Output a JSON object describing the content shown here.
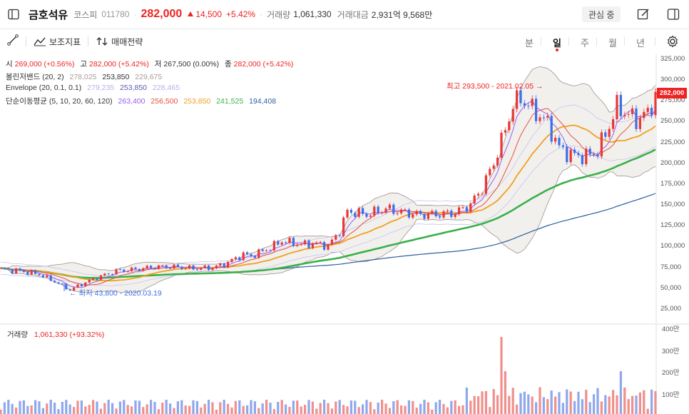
{
  "header": {
    "name": "금호석유",
    "market": "코스피",
    "code": "011780",
    "price": "282,000",
    "change": "14,500",
    "change_pct": "+5.42%",
    "volume_label": "거래량",
    "volume": "1,061,330",
    "amount_label": "거래대금",
    "amount": "2,931억 9,568만",
    "favorite": "관심 중"
  },
  "toolbar": {
    "indicator": "보조지표",
    "strategy": "매매전략",
    "periods": [
      "분",
      "일",
      "주",
      "월",
      "년"
    ],
    "selected_period": "일"
  },
  "legend": {
    "ohlc": {
      "open_l": "시",
      "open": "269,000 (+0.56%)",
      "high_l": "고",
      "high": "282,000 (+5.42%)",
      "low_l": "저",
      "low": "267,500 (0.00%)",
      "close_l": "종",
      "close": "282,000 (+5.42%)"
    },
    "bollinger": {
      "label": "볼린저밴드 (20, 2)",
      "v1": "278,025",
      "v2": "253,850",
      "v3": "229,675"
    },
    "envelope": {
      "label": "Envelope (20, 0.1, 0.1)",
      "v1": "279,235",
      "v2": "253,850",
      "v3": "228,465"
    },
    "ma": {
      "label": "단순이동평균 (5, 10, 20, 60, 120)",
      "v5": "263,400",
      "v10": "256,500",
      "v20": "253,850",
      "v60": "241,525",
      "v120": "194,408"
    }
  },
  "annotations": {
    "high": "최고 293,500 - 2021.02.05",
    "low": "최저 43,800 - 2020.03.19"
  },
  "volume_panel": {
    "label": "거래량",
    "value": "1,061,330 (+93.32%)"
  },
  "colors": {
    "up": "#e83838",
    "down": "#3d6fe8",
    "ma5": "#9a5cf0",
    "ma10": "#e8503c",
    "ma20": "#f0a020",
    "ma60": "#3ab04a",
    "ma120": "#2c5f9e",
    "band": "#a89c98"
  },
  "chart_data": {
    "type": "candlestick",
    "y_axis": [
      "325,000",
      "300,000",
      "275,000",
      "250,000",
      "225,000",
      "200,000",
      "175,000",
      "150,000",
      "125,000",
      "100,000",
      "75,000",
      "50,000",
      "25,000"
    ],
    "current_price": "282,000",
    "volume_axis": [
      "400만",
      "300만",
      "200만",
      "100만"
    ],
    "ylim": [
      0,
      325000
    ],
    "close_anchors": [
      [
        0,
        72000
      ],
      [
        5,
        70000
      ],
      [
        10,
        66000
      ],
      [
        15,
        55000
      ],
      [
        18,
        47000
      ],
      [
        20,
        52000
      ],
      [
        25,
        62000
      ],
      [
        30,
        70000
      ],
      [
        35,
        72000
      ],
      [
        40,
        75000
      ],
      [
        45,
        75000
      ],
      [
        50,
        73000
      ],
      [
        55,
        74000
      ],
      [
        58,
        78000
      ],
      [
        63,
        90000
      ],
      [
        65,
        88000
      ],
      [
        70,
        98000
      ],
      [
        73,
        106000
      ],
      [
        78,
        102000
      ],
      [
        82,
        103000
      ],
      [
        85,
        100000
      ],
      [
        88,
        118000
      ],
      [
        90,
        142000
      ],
      [
        95,
        138000
      ],
      [
        100,
        145000
      ],
      [
        103,
        142000
      ],
      [
        108,
        138000
      ],
      [
        113,
        138000
      ],
      [
        118,
        140000
      ],
      [
        122,
        150000
      ],
      [
        125,
        170000
      ],
      [
        128,
        200000
      ],
      [
        131,
        240000
      ],
      [
        133,
        270000
      ],
      [
        135,
        278000
      ],
      [
        138,
        265000
      ],
      [
        142,
        248000
      ],
      [
        145,
        218000
      ],
      [
        148,
        210000
      ],
      [
        152,
        208000
      ],
      [
        155,
        215000
      ],
      [
        158,
        245000
      ],
      [
        160,
        268000
      ],
      [
        163,
        258000
      ],
      [
        165,
        252000
      ],
      [
        168,
        260000
      ],
      [
        170,
        282000
      ]
    ],
    "high_annotation_value": 293500,
    "low_annotation_value": 43800
  }
}
